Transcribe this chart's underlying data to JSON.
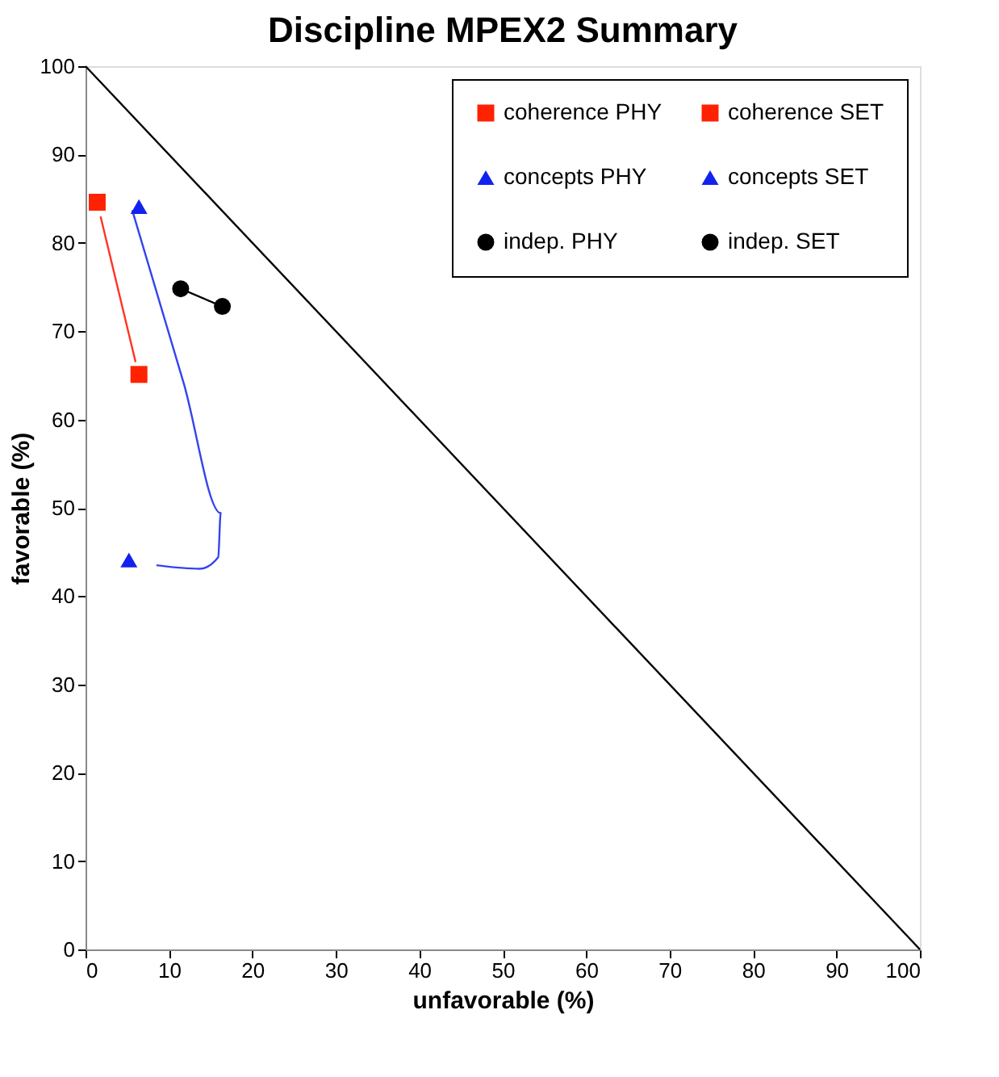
{
  "chart_data": {
    "type": "scatter",
    "title": "Discipline MPEX2 Summary",
    "xlabel": "unfavorable (%)",
    "ylabel": "favorable (%)",
    "xlim": [
      0,
      100
    ],
    "ylim": [
      0,
      100
    ],
    "xticks": [
      0,
      10,
      20,
      30,
      40,
      50,
      60,
      70,
      80,
      90,
      100
    ],
    "yticks": [
      0,
      10,
      20,
      30,
      40,
      50,
      60,
      70,
      80,
      90,
      100
    ],
    "grid": false,
    "legend": "top right",
    "series": [
      {
        "type": "line",
        "color": "#000000",
        "x": [
          0,
          100
        ],
        "values": [
          100,
          0
        ]
      },
      {
        "type": "line",
        "color": "#ff3322",
        "x": [
          1.8,
          6.0
        ],
        "values": [
          83,
          66.5
        ]
      },
      {
        "type": "line",
        "color": "#3344ee",
        "x": [
          5.6,
          11.8,
          16.2,
          15.9,
          13.7,
          8.5
        ],
        "values": [
          83.7,
          64.0,
          49.4,
          44.4,
          43.1,
          43.5
        ]
      },
      {
        "type": "line",
        "color": "#000000",
        "x": [
          11.4,
          16.4
        ],
        "values": [
          74.8,
          72.8
        ]
      },
      {
        "name": "coherence PHY",
        "color": "#ff2200",
        "marker": "square",
        "x": [
          1.4
        ],
        "values": [
          84.6
        ]
      },
      {
        "name": "coherence SET",
        "color": "#ff2200",
        "marker": "square",
        "x": [
          6.4
        ],
        "values": [
          65.1
        ]
      },
      {
        "name": "concepts PHY",
        "color": "#1122ee",
        "marker": "triangle",
        "x": [
          6.4
        ],
        "values": [
          84.1
        ]
      },
      {
        "name": "concepts SET",
        "color": "#1122ee",
        "marker": "triangle",
        "x": [
          5.2
        ],
        "values": [
          44.1
        ]
      },
      {
        "name": "indep. PHY",
        "color": "#000000",
        "marker": "circle",
        "x": [
          11.4
        ],
        "values": [
          74.8
        ]
      },
      {
        "name": "indep. SET",
        "color": "#000000",
        "marker": "circle",
        "x": [
          16.4
        ],
        "values": [
          72.8
        ]
      }
    ]
  }
}
